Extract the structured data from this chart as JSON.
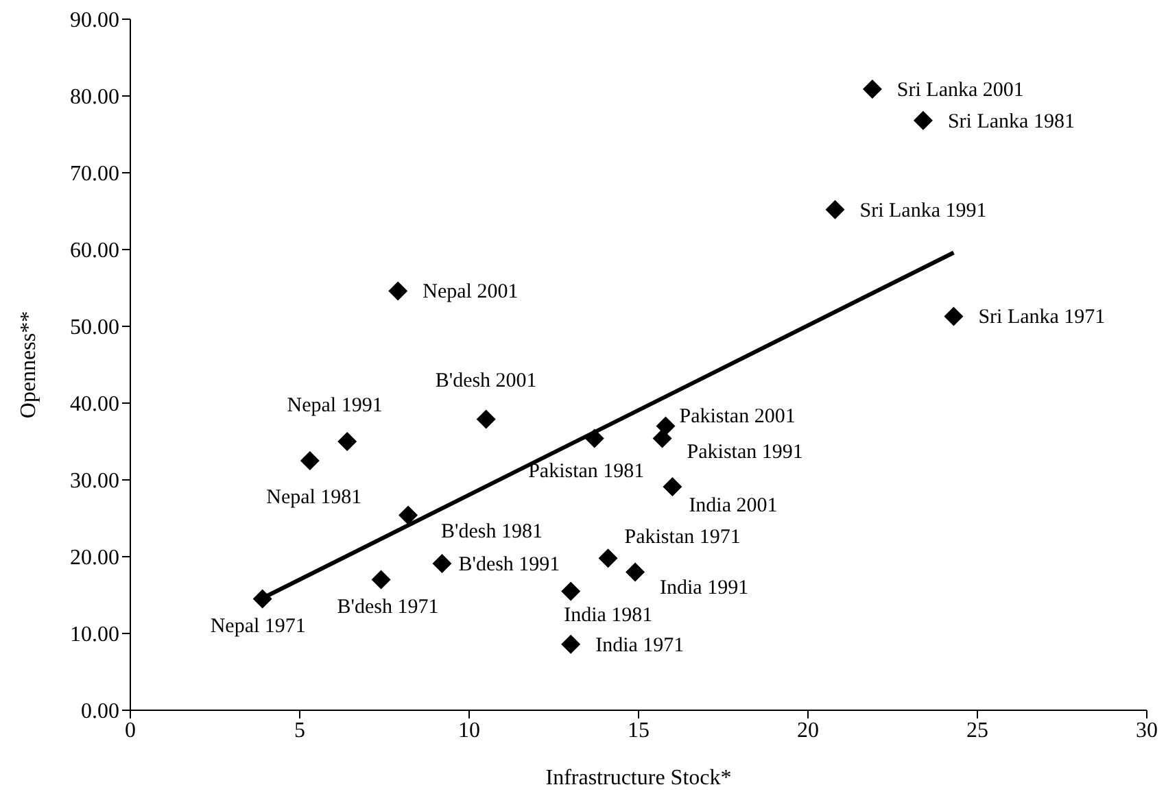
{
  "chart_data": {
    "type": "scatter",
    "xlabel": "Infrastructure Stock*",
    "ylabel": "Openness**",
    "marker": "diamond",
    "xlim": [
      0,
      30
    ],
    "xticks": [
      0,
      5,
      10,
      15,
      20,
      25,
      30
    ],
    "ylim": [
      0,
      90
    ],
    "yticks": [
      {
        "value": 0,
        "label": "0.00"
      },
      {
        "value": 10,
        "label": "10.00"
      },
      {
        "value": 20,
        "label": "20.00"
      },
      {
        "value": 30,
        "label": "30.00"
      },
      {
        "value": 40,
        "label": "40.00"
      },
      {
        "value": 50,
        "label": "50.00"
      },
      {
        "value": 60,
        "label": "60.00"
      },
      {
        "value": 70,
        "label": "70.00"
      },
      {
        "value": 80,
        "label": "80.00"
      },
      {
        "value": 90,
        "label": "90.00"
      }
    ],
    "series": [
      {
        "color": "#000000",
        "x": [
          21.9,
          23.4,
          20.8,
          24.3,
          7.9,
          10.5,
          6.4,
          5.3,
          15.8,
          15.7,
          13.7,
          16.0,
          8.2,
          14.1,
          14.9,
          9.2,
          7.4,
          13.0,
          3.9,
          13.0
        ],
        "values": [
          80.9,
          76.8,
          65.2,
          51.3,
          54.6,
          37.9,
          35.0,
          32.5,
          37.0,
          35.4,
          35.4,
          29.1,
          25.4,
          19.8,
          18.0,
          19.1,
          17.0,
          15.5,
          14.5,
          8.6
        ],
        "value_labels": [
          "Sri Lanka 2001",
          "Sri Lanka 1981",
          "Sri Lanka 1991",
          "Sri Lanka 1971",
          "Nepal 2001",
          "B'desh 2001",
          "Nepal 1991",
          "Nepal 1981",
          "Pakistan 2001",
          "Pakistan 1991",
          "Pakistan 1981",
          "India 2001",
          "B'desh 1981",
          "Pakistan 1971",
          "India 1991",
          "B'desh 1991",
          "B'desh 1971",
          "India 1981",
          "Nepal 1971",
          "India 1971"
        ]
      },
      {
        "type": "line",
        "marker": "none",
        "color": "#000000",
        "x": [
          3.9,
          24.3
        ],
        "values": [
          14.6,
          59.6
        ]
      }
    ]
  }
}
